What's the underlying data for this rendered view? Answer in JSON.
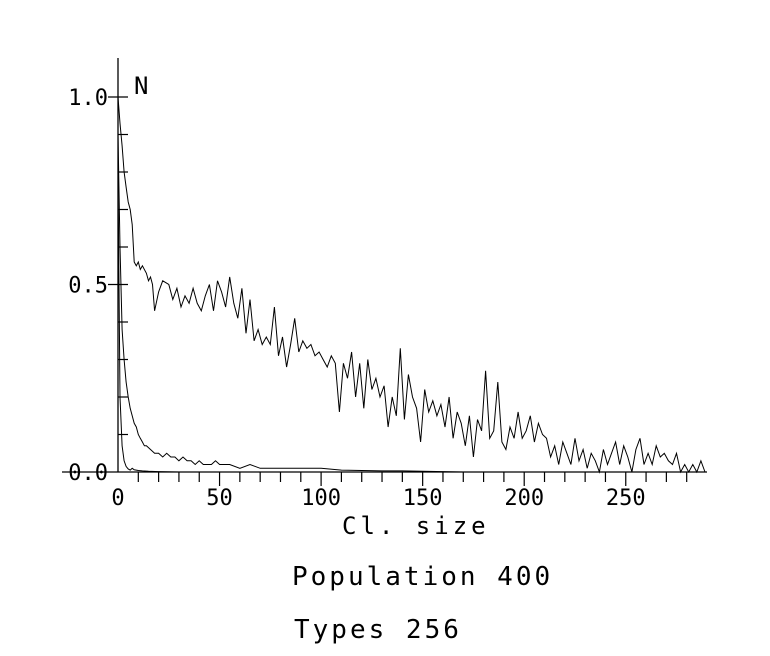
{
  "chart_data": {
    "type": "line",
    "xlabel": "Cl. size",
    "ylabel": "N",
    "xlim": [
      0,
      290
    ],
    "ylim": [
      0,
      1.1
    ],
    "x_ticks": [
      0,
      50,
      100,
      150,
      200,
      250
    ],
    "y_ticks": [
      0.0,
      0.5,
      1.0
    ],
    "x_tick_labels": [
      "0",
      "50",
      "100",
      "150",
      "200",
      "250"
    ],
    "y_tick_labels": [
      "0.0",
      "0.5",
      "1.0"
    ],
    "grid": false,
    "series": [
      {
        "points": [
          [
            0,
            1.0
          ],
          [
            1,
            0.93
          ],
          [
            2,
            0.87
          ],
          [
            3,
            0.8
          ],
          [
            4,
            0.76
          ],
          [
            5,
            0.72
          ],
          [
            6,
            0.7
          ],
          [
            7,
            0.66
          ],
          [
            8,
            0.56
          ],
          [
            9,
            0.55
          ],
          [
            10,
            0.56
          ],
          [
            11,
            0.54
          ],
          [
            12,
            0.55
          ],
          [
            14,
            0.53
          ],
          [
            15,
            0.51
          ],
          [
            16,
            0.52
          ],
          [
            17,
            0.5
          ],
          [
            18,
            0.43
          ],
          [
            20,
            0.48
          ],
          [
            22,
            0.51
          ],
          [
            25,
            0.5
          ],
          [
            27,
            0.46
          ],
          [
            29,
            0.49
          ],
          [
            31,
            0.44
          ],
          [
            33,
            0.47
          ],
          [
            35,
            0.45
          ],
          [
            37,
            0.49
          ],
          [
            39,
            0.45
          ],
          [
            41,
            0.43
          ],
          [
            43,
            0.47
          ],
          [
            45,
            0.5
          ],
          [
            47,
            0.43
          ],
          [
            49,
            0.51
          ],
          [
            51,
            0.48
          ],
          [
            53,
            0.44
          ],
          [
            55,
            0.52
          ],
          [
            57,
            0.45
          ],
          [
            59,
            0.41
          ],
          [
            61,
            0.49
          ],
          [
            63,
            0.37
          ],
          [
            65,
            0.46
          ],
          [
            67,
            0.35
          ],
          [
            69,
            0.38
          ],
          [
            71,
            0.34
          ],
          [
            73,
            0.36
          ],
          [
            75,
            0.34
          ],
          [
            77,
            0.44
          ],
          [
            79,
            0.31
          ],
          [
            81,
            0.36
          ],
          [
            83,
            0.28
          ],
          [
            85,
            0.34
          ],
          [
            87,
            0.41
          ],
          [
            89,
            0.32
          ],
          [
            91,
            0.35
          ],
          [
            93,
            0.33
          ],
          [
            95,
            0.34
          ],
          [
            97,
            0.31
          ],
          [
            99,
            0.32
          ],
          [
            101,
            0.3
          ],
          [
            103,
            0.28
          ],
          [
            105,
            0.31
          ],
          [
            107,
            0.29
          ],
          [
            109,
            0.16
          ],
          [
            111,
            0.29
          ],
          [
            113,
            0.25
          ],
          [
            115,
            0.32
          ],
          [
            117,
            0.2
          ],
          [
            119,
            0.29
          ],
          [
            121,
            0.17
          ],
          [
            123,
            0.3
          ],
          [
            125,
            0.22
          ],
          [
            127,
            0.25
          ],
          [
            129,
            0.2
          ],
          [
            131,
            0.23
          ],
          [
            133,
            0.12
          ],
          [
            135,
            0.2
          ],
          [
            137,
            0.15
          ],
          [
            139,
            0.33
          ],
          [
            141,
            0.14
          ],
          [
            143,
            0.26
          ],
          [
            145,
            0.2
          ],
          [
            147,
            0.17
          ],
          [
            149,
            0.08
          ],
          [
            151,
            0.22
          ],
          [
            153,
            0.16
          ],
          [
            155,
            0.19
          ],
          [
            157,
            0.15
          ],
          [
            159,
            0.18
          ],
          [
            161,
            0.12
          ],
          [
            163,
            0.2
          ],
          [
            165,
            0.09
          ],
          [
            167,
            0.16
          ],
          [
            169,
            0.13
          ],
          [
            171,
            0.07
          ],
          [
            173,
            0.15
          ],
          [
            175,
            0.04
          ],
          [
            177,
            0.14
          ],
          [
            179,
            0.11
          ],
          [
            181,
            0.27
          ],
          [
            183,
            0.09
          ],
          [
            185,
            0.11
          ],
          [
            187,
            0.24
          ],
          [
            189,
            0.08
          ],
          [
            191,
            0.06
          ],
          [
            193,
            0.12
          ],
          [
            195,
            0.09
          ],
          [
            197,
            0.16
          ],
          [
            199,
            0.09
          ],
          [
            201,
            0.11
          ],
          [
            203,
            0.15
          ],
          [
            205,
            0.08
          ],
          [
            207,
            0.13
          ],
          [
            209,
            0.1
          ],
          [
            211,
            0.09
          ],
          [
            213,
            0.04
          ],
          [
            215,
            0.07
          ],
          [
            217,
            0.02
          ],
          [
            219,
            0.08
          ],
          [
            221,
            0.05
          ],
          [
            223,
            0.02
          ],
          [
            225,
            0.09
          ],
          [
            227,
            0.03
          ],
          [
            229,
            0.06
          ],
          [
            231,
            0.01
          ],
          [
            233,
            0.05
          ],
          [
            235,
            0.03
          ],
          [
            237,
            0.0
          ],
          [
            239,
            0.06
          ],
          [
            241,
            0.02
          ],
          [
            243,
            0.05
          ],
          [
            245,
            0.08
          ],
          [
            247,
            0.02
          ],
          [
            249,
            0.07
          ],
          [
            251,
            0.04
          ],
          [
            253,
            0.0
          ],
          [
            255,
            0.06
          ],
          [
            257,
            0.09
          ],
          [
            259,
            0.02
          ],
          [
            261,
            0.05
          ],
          [
            263,
            0.02
          ],
          [
            265,
            0.07
          ],
          [
            267,
            0.04
          ],
          [
            269,
            0.05
          ],
          [
            271,
            0.03
          ],
          [
            273,
            0.02
          ],
          [
            275,
            0.05
          ],
          [
            277,
            0.0
          ],
          [
            279,
            0.02
          ],
          [
            281,
            0.0
          ],
          [
            283,
            0.02
          ],
          [
            285,
            0.0
          ],
          [
            287,
            0.03
          ],
          [
            289,
            0.0
          ]
        ]
      },
      {
        "points": [
          [
            0,
            0.9
          ],
          [
            1,
            0.6
          ],
          [
            2,
            0.38
          ],
          [
            3,
            0.3
          ],
          [
            4,
            0.24
          ],
          [
            5,
            0.2
          ],
          [
            6,
            0.17
          ],
          [
            7,
            0.15
          ],
          [
            8,
            0.13
          ],
          [
            9,
            0.12
          ],
          [
            10,
            0.1
          ],
          [
            11,
            0.09
          ],
          [
            12,
            0.08
          ],
          [
            13,
            0.07
          ],
          [
            14,
            0.07
          ],
          [
            16,
            0.06
          ],
          [
            18,
            0.05
          ],
          [
            20,
            0.05
          ],
          [
            22,
            0.04
          ],
          [
            24,
            0.05
          ],
          [
            26,
            0.04
          ],
          [
            28,
            0.04
          ],
          [
            30,
            0.03
          ],
          [
            32,
            0.04
          ],
          [
            34,
            0.03
          ],
          [
            36,
            0.03
          ],
          [
            38,
            0.02
          ],
          [
            40,
            0.03
          ],
          [
            42,
            0.02
          ],
          [
            44,
            0.02
          ],
          [
            46,
            0.02
          ],
          [
            48,
            0.03
          ],
          [
            50,
            0.02
          ],
          [
            55,
            0.02
          ],
          [
            60,
            0.01
          ],
          [
            65,
            0.02
          ],
          [
            70,
            0.01
          ],
          [
            75,
            0.01
          ],
          [
            80,
            0.01
          ],
          [
            85,
            0.01
          ],
          [
            90,
            0.01
          ],
          [
            100,
            0.01
          ],
          [
            110,
            0.005
          ],
          [
            120,
            0.004
          ],
          [
            130,
            0.003
          ],
          [
            140,
            0.003
          ],
          [
            150,
            0.002
          ],
          [
            160,
            0.001
          ],
          [
            170,
            0.0
          ],
          [
            180,
            0.0
          ],
          [
            200,
            0.0
          ],
          [
            250,
            0.0
          ],
          [
            289,
            0.0
          ]
        ]
      },
      {
        "points": [
          [
            0,
            0.8
          ],
          [
            1,
            0.2
          ],
          [
            2,
            0.07
          ],
          [
            3,
            0.03
          ],
          [
            4,
            0.015
          ],
          [
            5,
            0.008
          ],
          [
            6,
            0.005
          ],
          [
            7,
            0.01
          ],
          [
            8,
            0.006
          ],
          [
            10,
            0.004
          ],
          [
            12,
            0.003
          ],
          [
            15,
            0.002
          ],
          [
            20,
            0.001
          ],
          [
            30,
            0.0
          ],
          [
            50,
            0.0
          ],
          [
            100,
            0.0
          ],
          [
            150,
            0.0
          ],
          [
            200,
            0.0
          ],
          [
            289,
            0.0
          ]
        ]
      }
    ]
  },
  "info": {
    "population": "Population  400",
    "types": "Types  256"
  }
}
